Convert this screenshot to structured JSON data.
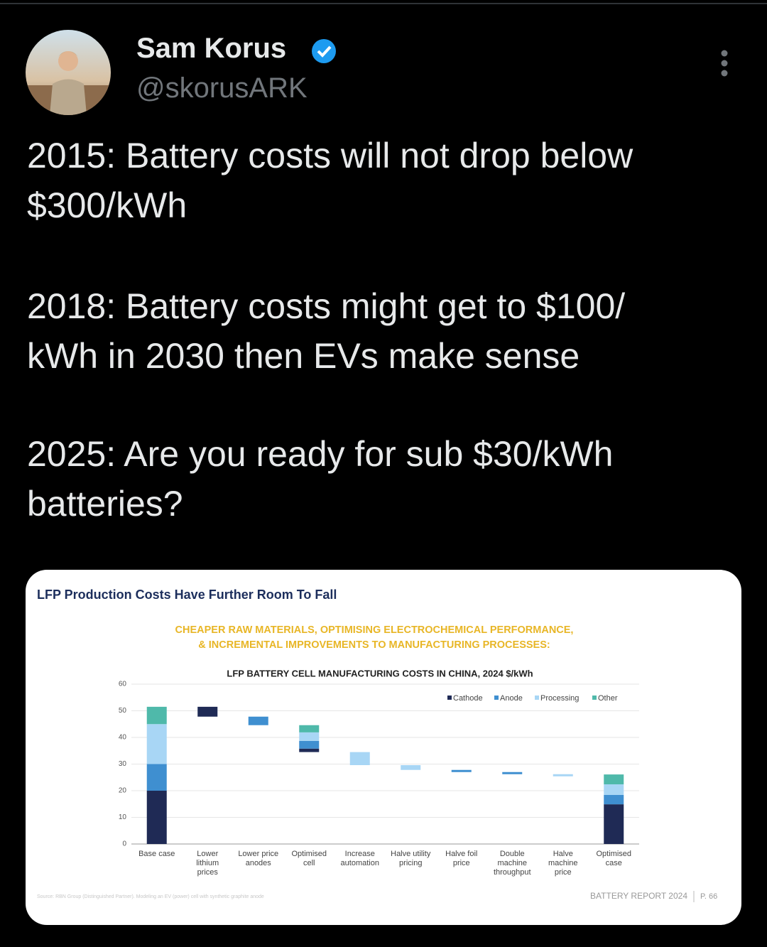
{
  "header": {
    "name": "Sam Korus",
    "handle": "@skorusARK"
  },
  "tweet": {
    "paragraphs": [
      [
        "2015: Battery costs will not drop below",
        "$300/kWh"
      ],
      [
        "2018: Battery costs might get to $100/",
        "kWh in 2030 then EVs make sense"
      ],
      [
        "2025: Are you ready for sub $30/kWh",
        "batteries?"
      ]
    ]
  },
  "card": {
    "heading": "LFP Production Costs Have Further Room To Fall",
    "tagline": [
      "CHEAPER RAW MATERIALS, OPTIMISING ELECTROCHEMICAL PERFORMANCE,",
      "& INCREMENTAL IMPROVEMENTS TO MANUFACTURING PROCESSES:"
    ],
    "source": "Source: RBN Group (Distinguished Partner). Modeling an EV (power) cell with synthetic graphite anode",
    "footer": "BATTERY REPORT 2024",
    "page": "P. 66"
  },
  "chart_data": {
    "type": "waterfall",
    "title": "LFP BATTERY CELL MANUFACTURING COSTS IN CHINA, 2024 $/kWh",
    "categories": [
      "Base case",
      "Lower lithium prices",
      "Lower price anodes",
      "Optimised cell",
      "Increase automation",
      "Halve utility pricing",
      "Halve foil price",
      "Double machine throughput",
      "Halve machine price",
      "Optimised case"
    ],
    "series": [
      {
        "name": "Cathode",
        "color": "#1f2a55",
        "values": [
          20,
          3.7,
          null,
          1.3,
          null,
          null,
          null,
          null,
          null,
          14.9
        ]
      },
      {
        "name": "Anode",
        "color": "#3f8fd0",
        "values": [
          10,
          null,
          3.2,
          2.9,
          null,
          null,
          0.8,
          0.8,
          null,
          3.5
        ]
      },
      {
        "name": "Processing",
        "color": "#a8d6f5",
        "values": [
          15,
          null,
          null,
          3.2,
          4.9,
          1.8,
          null,
          null,
          0.8,
          4
        ]
      },
      {
        "name": "Other",
        "color": "#4fb9aa",
        "values": [
          6.5,
          null,
          null,
          2.7,
          null,
          null,
          null,
          null,
          null,
          3.7
        ]
      }
    ],
    "ylim": [
      0,
      60
    ],
    "yticks": [
      0,
      10,
      20,
      30,
      40,
      50,
      60
    ],
    "grid": true,
    "legend": "top-right"
  }
}
